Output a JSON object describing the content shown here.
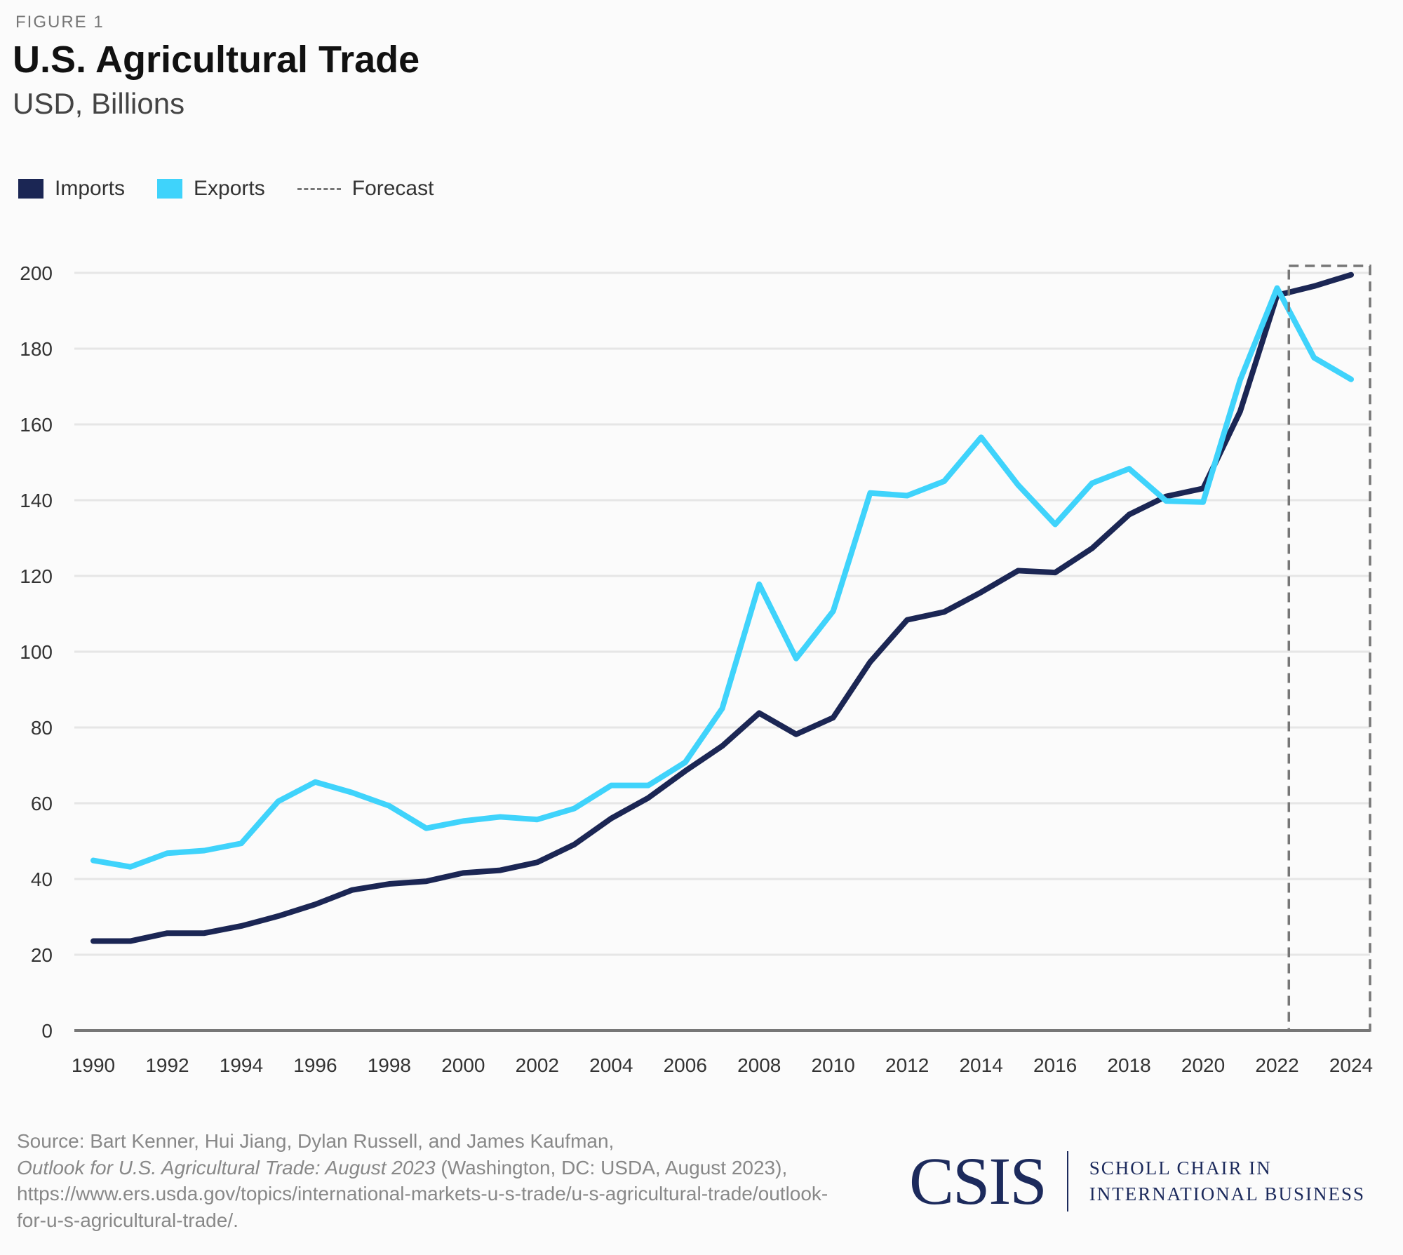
{
  "figure_label": "FIGURE 1",
  "chart_data": {
    "type": "line",
    "title": "U.S. Agricultural Trade",
    "subtitle": "USD, Billions",
    "x": [
      1990,
      1991,
      1992,
      1993,
      1994,
      1995,
      1996,
      1997,
      1998,
      1999,
      2000,
      2001,
      2002,
      2003,
      2004,
      2005,
      2006,
      2007,
      2008,
      2009,
      2010,
      2011,
      2012,
      2013,
      2014,
      2015,
      2016,
      2017,
      2018,
      2019,
      2020,
      2021,
      2022,
      2023,
      2024
    ],
    "series": [
      {
        "name": "Imports",
        "color": "#1b2654",
        "values": [
          23.6,
          23.6,
          25.7,
          25.7,
          27.6,
          30.2,
          33.3,
          37.1,
          38.7,
          39.4,
          41.6,
          42.3,
          44.4,
          49.1,
          56.0,
          61.4,
          68.5,
          75.1,
          83.8,
          78.2,
          82.6,
          97.3,
          108.4,
          110.5,
          115.7,
          121.4,
          120.9,
          127.3,
          136.2,
          141.0,
          143.1,
          163.4,
          194.1,
          196.5,
          199.5
        ]
      },
      {
        "name": "Exports",
        "color": "#3fd3fb",
        "values": [
          44.9,
          43.2,
          46.8,
          47.5,
          49.4,
          60.5,
          65.6,
          62.8,
          59.3,
          53.4,
          55.3,
          56.4,
          55.7,
          58.6,
          64.7,
          64.7,
          70.8,
          85.0,
          117.8,
          98.2,
          110.7,
          141.9,
          141.2,
          145.0,
          156.6,
          144.0,
          133.6,
          144.5,
          148.3,
          139.8,
          139.5,
          171.7,
          196.0,
          177.6,
          171.9
        ]
      }
    ],
    "forecast": {
      "label": "Forecast",
      "from": 2023,
      "to": 2024,
      "color": "#777777"
    },
    "ylim": [
      0,
      200
    ],
    "yticks": [
      "0",
      "20",
      "40",
      "60",
      "80",
      "100",
      "120",
      "140",
      "160",
      "180",
      "200"
    ],
    "xticks": [
      "1990",
      "1992",
      "1994",
      "1996",
      "1998",
      "2000",
      "2002",
      "2004",
      "2006",
      "2008",
      "2010",
      "2012",
      "2014",
      "2016",
      "2018",
      "2020",
      "2022",
      "2024"
    ],
    "grid": true,
    "legend_position": "top-left"
  },
  "source": {
    "prefix": "Source: Bart Kenner, Hui Jiang, Dylan Russell, and James Kaufman,",
    "italic": "Outlook for U.S. Agricultural Trade: August 2023",
    "suffix": " (Washington, DC: USDA, August 2023), https://www.ers.usda.gov/topics/international-markets-u-s-trade/u-s-agricultural-trade/outlook-for-u-s-agricultural-trade/."
  },
  "logo": {
    "name": "CSIS",
    "line1": "SCHOLL CHAIR IN",
    "line2": "INTERNATIONAL BUSINESS"
  }
}
